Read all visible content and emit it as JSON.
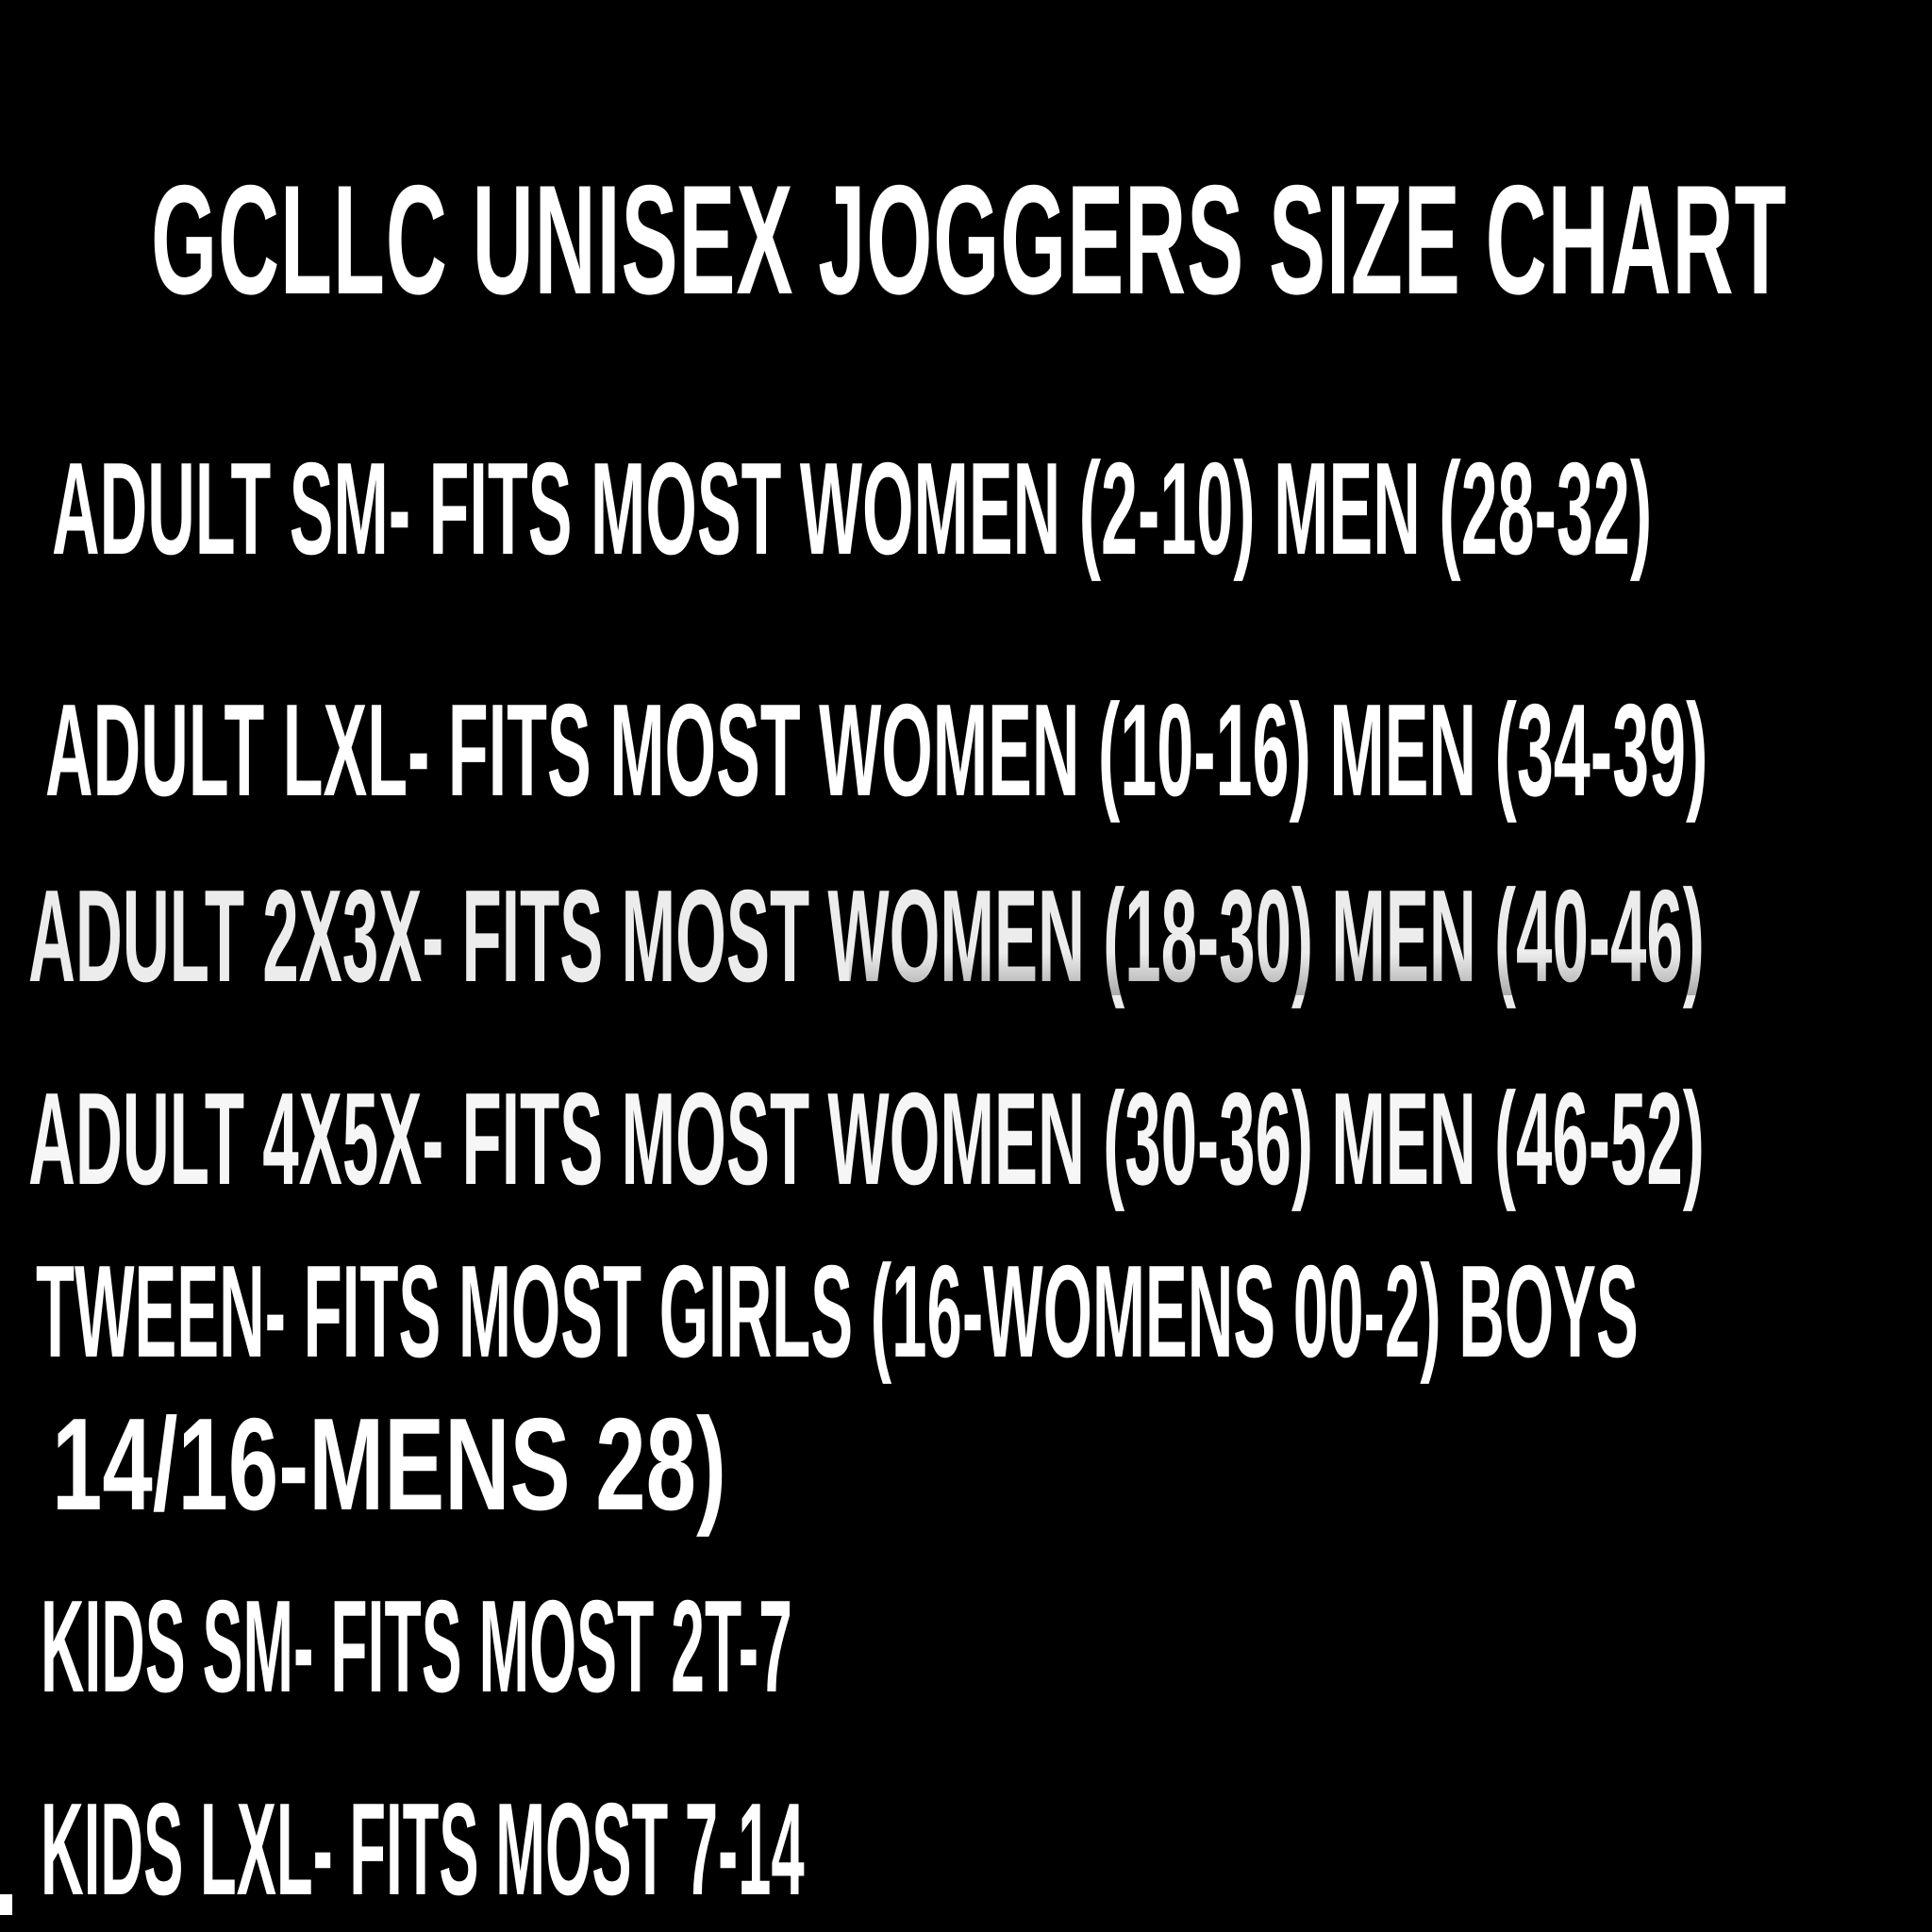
{
  "page": {
    "background_color": "#000000",
    "text_color": "#ffffff"
  },
  "title": "GCLLC UNISEX JOGGERS SIZE CHART",
  "size_chart": {
    "lines": [
      "ADULT SM- FITS MOST WOMEN (2-10) MEN (28-32)",
      "ADULT LXL- FITS MOST WOMEN (10-16) MEN (34-39)",
      "ADULT 2X3X- FITS MOST WOMEN (18-30) MEN (40-46)",
      "ADULT 4X5X- FITS MOST WOMEN (30-36) MEN (46-52)",
      "TWEEN- FITS MOST GIRLS (16-WOMENS 00-2) BOYS",
      "14/16-MENS 28)",
      "KIDS SM- FITS MOST 2T-7",
      "KIDS LXL- FITS MOST 7-14"
    ]
  }
}
